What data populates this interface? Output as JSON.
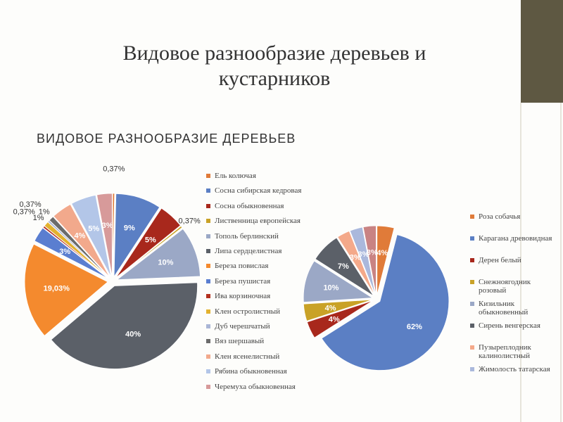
{
  "title": "Видовое разнообразие деревьев и кустарников",
  "chart_data": [
    {
      "type": "pie",
      "title": "ВИДОВОЕ РАЗНООБРАЗИЕ ДЕРЕВЬЕВ",
      "categories": [
        "Ель колючая",
        "Сосна сибирская кедровая",
        "Сосна обыкновенная",
        "Лиственница европейская",
        "Тополь берлинский",
        "Липа сердцелистная",
        "Береза повислая",
        "Береза пушистая",
        "Ива корзиночная",
        "Клен остролистный",
        "Дуб черешчатый",
        "Вяз шершавый",
        "Клен ясенелистный",
        "Рябина обыкновенная",
        "Черемуха обыкновенная"
      ],
      "values": [
        0.37,
        9,
        5,
        0.37,
        10,
        40,
        19.03,
        3,
        0.37,
        1,
        0.37,
        1,
        4,
        5,
        3
      ],
      "value_labels": [
        "0,37%",
        "9%",
        "5%",
        "0,37%",
        "10%",
        "40%",
        "19,03%",
        "3%",
        "0,37%",
        "1%",
        "0,37%",
        "1%",
        "4%",
        "5%",
        "3%"
      ],
      "colors": [
        "#e07b39",
        "#5b7fc4",
        "#a8281c",
        "#c9a227",
        "#9ba8c6",
        "#5b6068",
        "#f48a2e",
        "#5a7ed0",
        "#b3301f",
        "#e3b22f",
        "#aab6d6",
        "#6b6b6b",
        "#f2a98c",
        "#b3c6e8",
        "#d79a9a"
      ]
    },
    {
      "type": "pie",
      "categories": [
        "Роза собачья",
        "Карагана древовидная",
        "Дерен белый",
        "Снежноягодник розовый",
        "Кизильник обыкновенный",
        "Сирень венгерская",
        "Пузыреплодник калинолистный",
        "Жимолость татарская",
        null
      ],
      "values": [
        4,
        62,
        4,
        4,
        10,
        7,
        3,
        3,
        3
      ],
      "value_labels": [
        "4%",
        "62%",
        "4%",
        "4%",
        "10%",
        "7%",
        "3%",
        "3%",
        "3%"
      ],
      "colors": [
        "#e07b39",
        "#5b7fc4",
        "#a8281c",
        "#c9a227",
        "#9ba8c6",
        "#5b6068",
        "#f4a98a",
        "#aab8dc",
        "#c98383"
      ]
    }
  ]
}
